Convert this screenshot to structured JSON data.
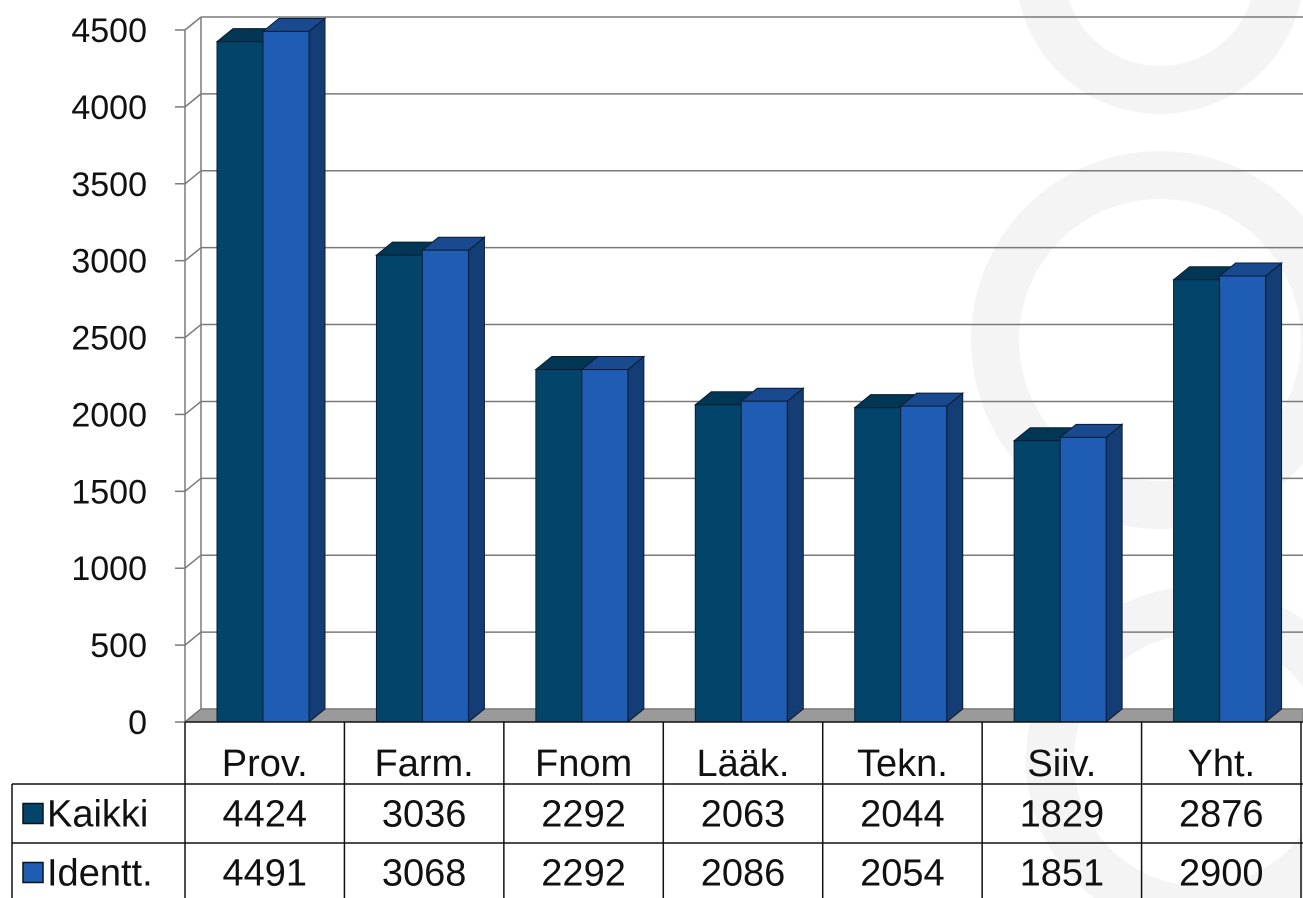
{
  "colors": {
    "series_1": "#03446a",
    "series_2": "#1f5db4",
    "floor": "#9a9a9a",
    "grid": "#7a7a7a",
    "text": "#111111"
  },
  "chart_data": {
    "type": "bar",
    "style": "3d-clustered-column-with-data-table",
    "title": "",
    "xlabel": "",
    "ylabel": "",
    "ylim": [
      0,
      4500
    ],
    "y_ticks": [
      0,
      500,
      1000,
      1500,
      2000,
      2500,
      3000,
      3500,
      4000,
      4500
    ],
    "grid": true,
    "legend": "data-table-left",
    "categories": [
      "Prov.",
      "Farm.",
      "Fnom",
      "Lääk.",
      "Tekn.",
      "Siiv.",
      "Yht."
    ],
    "series": [
      {
        "name": "Kaikki",
        "values": [
          4424,
          3036,
          2292,
          2063,
          2044,
          1829,
          2876
        ]
      },
      {
        "name": "Identt.",
        "values": [
          4491,
          3068,
          2292,
          2086,
          2054,
          1851,
          2900
        ]
      }
    ]
  }
}
